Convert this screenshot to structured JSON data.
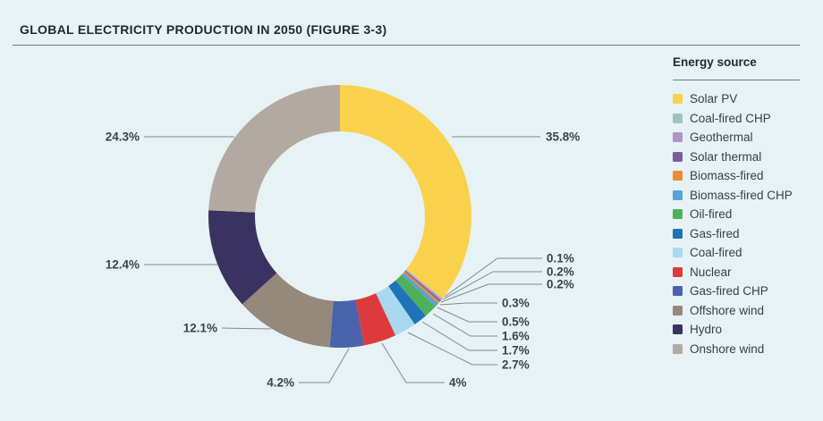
{
  "page": {
    "title": "GLOBAL ELECTRICITY PRODUCTION IN 2050 (FIGURE 3-3)",
    "background": "#E7F2F5"
  },
  "legend": {
    "title": "Energy source",
    "position": "right",
    "items": [
      {
        "label": "Solar PV",
        "color": "#F9D14B"
      },
      {
        "label": "Coal-fired CHP",
        "color": "#9EC4C1"
      },
      {
        "label": "Geothermal",
        "color": "#B493C6"
      },
      {
        "label": "Solar thermal",
        "color": "#7A5CA4"
      },
      {
        "label": "Biomass-fired",
        "color": "#EF8B36"
      },
      {
        "label": "Biomass-fired CHP",
        "color": "#57A3D6"
      },
      {
        "label": "Oil-fired",
        "color": "#4FB05C"
      },
      {
        "label": "Gas-fired",
        "color": "#1E73B9"
      },
      {
        "label": "Coal-fired",
        "color": "#A9D9EF"
      },
      {
        "label": "Nuclear",
        "color": "#DD3B3B"
      },
      {
        "label": "Gas-fired CHP",
        "color": "#4A63AC"
      },
      {
        "label": "Offshore wind",
        "color": "#95897B"
      },
      {
        "label": "Hydro",
        "color": "#3A3361"
      },
      {
        "label": "Onshore wind",
        "color": "#B2AAA1"
      }
    ]
  },
  "chart_data": {
    "type": "pie",
    "subtype": "donut",
    "title": "Global electricity production in 2050 (Figure 3-3)",
    "units": "%",
    "start_angle_deg": 0,
    "direction": "clockwise",
    "legend_position": "right",
    "categories": [
      "Solar PV",
      "Coal-fired CHP",
      "Geothermal",
      "Solar thermal",
      "Biomass-fired",
      "Biomass-fired CHP",
      "Oil-fired",
      "Gas-fired",
      "Coal-fired",
      "Nuclear",
      "Gas-fired CHP",
      "Offshore wind",
      "Hydro",
      "Onshore wind"
    ],
    "values": [
      35.8,
      0.1,
      0.2,
      0.2,
      0.3,
      0.5,
      1.6,
      1.7,
      2.7,
      4,
      4.2,
      12.1,
      12.4,
      24.3
    ],
    "display_labels": [
      "35.8%",
      "0.1%",
      "0.2%",
      "0.2%",
      "0.3%",
      "0.5%",
      "1.6%",
      "1.7%",
      "2.7%",
      "4%",
      "4.2%",
      "12.1%",
      "12.4%",
      "24.3%"
    ],
    "colors": [
      "#F9D14B",
      "#9EC4C1",
      "#B493C6",
      "#7A5CA4",
      "#EF8B36",
      "#57A3D6",
      "#4FB05C",
      "#1E73B9",
      "#A9D9EF",
      "#DD3B3B",
      "#4A63AC",
      "#95897B",
      "#3A3361",
      "#B2AAA1"
    ]
  }
}
